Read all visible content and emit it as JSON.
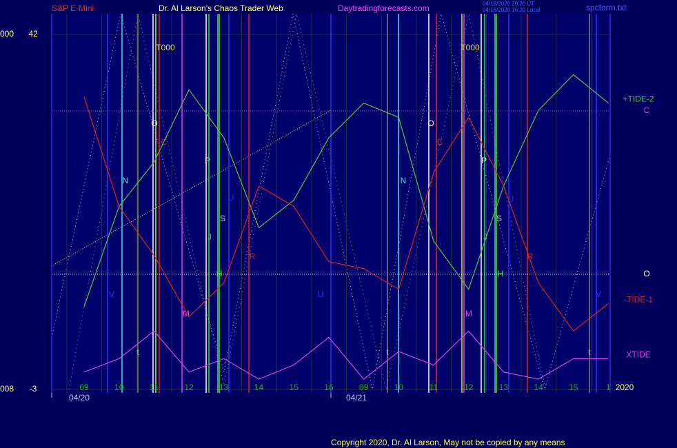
{
  "header": {
    "instrument": "S&P E-Mini",
    "site_title": "Dr. Al Larson's Chaos Trader Web",
    "site_url": "Daytradingforecasts.com",
    "stamp_ut": "04/18/2020 20:20 UT",
    "stamp_local": "04/18/2020 16:20 Local",
    "file": "spcform.txt"
  },
  "chart_data": {
    "type": "line",
    "categories": [
      "09",
      "10",
      "11",
      "12",
      "13",
      "14",
      "15",
      "16",
      "09",
      "10",
      "11",
      "12",
      "13",
      "14",
      "15",
      "1"
    ],
    "dates": [
      "04/20",
      "04/21"
    ],
    "year": "2020",
    "ylim": [
      -3,
      42
    ],
    "yticks": [
      -3,
      42
    ],
    "left_labels": [
      "008",
      "000"
    ],
    "series": [
      {
        "name": "+TIDE-2",
        "color": "#40d040",
        "values": [
          7.5,
          20.2,
          25.8,
          35.0,
          28.9,
          17.5,
          21.0,
          28.9,
          33.3,
          31.5,
          15.8,
          9.7,
          22.8,
          32.4,
          36.9,
          33.3
        ]
      },
      {
        "name": "-TIDE-1",
        "color": "#e02020",
        "values": [
          34.1,
          20.2,
          14.0,
          6.2,
          10.5,
          22.8,
          20.2,
          13.2,
          12.3,
          9.7,
          24.5,
          31.5,
          22.8,
          10.5,
          4.4,
          7.9
        ]
      },
      {
        "name": "XTIDE",
        "color": "#e040e0",
        "values": [
          -0.8,
          0.9,
          4.4,
          -0.8,
          0.9,
          -1.7,
          0.1,
          3.6,
          -1.7,
          1.8,
          0.1,
          4.4,
          -0.8,
          -1.7,
          0.9,
          0.9
        ]
      }
    ],
    "levels": [
      {
        "name": "C",
        "color": "#d040d0",
        "value": 32.3
      },
      {
        "name": "O",
        "color": "#ffffff",
        "value": 11.6
      }
    ],
    "annotations": [
      "N",
      "O",
      "C",
      "T000",
      "M",
      "P",
      "J",
      "S",
      "H",
      "U",
      "R",
      "V",
      "U",
      "t",
      "N",
      "O",
      "C",
      "T000",
      "M",
      "P",
      "J",
      "S",
      "H",
      "U",
      "R",
      "V",
      "t",
      "t"
    ]
  },
  "footer": {
    "copyright": "Copyright 2020, Dr. Al Larson, May not be copied by any means"
  }
}
